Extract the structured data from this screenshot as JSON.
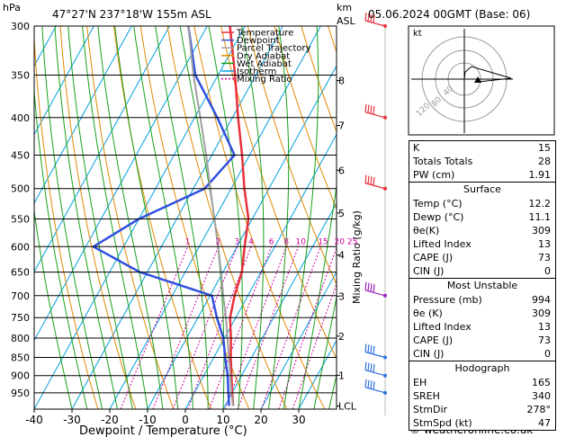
{
  "header": {
    "pressure_unit": "hPa",
    "location": "47°27'N  237°18'W  155m  ASL",
    "km_unit": "km",
    "asl_unit": "ASL",
    "datetime": "05.06.2024  00GMT  (Base: 06)"
  },
  "footer": {
    "xlabel": "Dewpoint / Temperature (°C)",
    "credit": "© weatheronline.co.uk"
  },
  "mixing_ratio_label": "Mixing Ratio (g/kg)",
  "legend": [
    {
      "label": "Temperature",
      "color": "#e8303a",
      "dash": ""
    },
    {
      "label": "Dewpoint",
      "color": "#3050e0",
      "dash": ""
    },
    {
      "label": "Parcel Trajectory",
      "color": "#a0a0a0",
      "dash": ""
    },
    {
      "label": "Dry Adiabat",
      "color": "#e08a00",
      "dash": ""
    },
    {
      "label": "Wet Adiabat",
      "color": "#18a018",
      "dash": ""
    },
    {
      "label": "Isotherm",
      "color": "#00a0e0",
      "dash": ""
    },
    {
      "label": "Mixing Ratio",
      "color": "#d000a0",
      "dash": "2,2"
    }
  ],
  "chart_data": {
    "type": "line",
    "title": "",
    "xlabel": "Dewpoint / Temperature (°C)",
    "ylabel": "hPa",
    "xlim": [
      -40,
      40
    ],
    "ylim": [
      1000,
      300
    ],
    "log_pressure": true,
    "x_ticks": [
      -40,
      -30,
      -20,
      -10,
      0,
      10,
      20,
      30
    ],
    "pressure_ticks": [
      300,
      350,
      400,
      450,
      500,
      550,
      600,
      650,
      700,
      750,
      800,
      850,
      900,
      950
    ],
    "km_ticks": [
      {
        "label": "8",
        "p": 356
      },
      {
        "label": "7",
        "p": 410
      },
      {
        "label": "6",
        "p": 472
      },
      {
        "label": "5",
        "p": 540
      },
      {
        "label": "4",
        "p": 616
      },
      {
        "label": "3",
        "p": 701
      },
      {
        "label": "2",
        "p": 795
      },
      {
        "label": "1",
        "p": 899
      },
      {
        "label": "LCL",
        "p": 990
      }
    ],
    "mixing_ratio_labels": [
      "1",
      "2",
      "3",
      "4",
      "6",
      "8",
      "10",
      "15",
      "20",
      "25"
    ],
    "mixing_ratio_values": [
      1,
      2,
      3,
      4,
      6,
      8,
      10,
      15,
      20,
      25
    ],
    "series": [
      {
        "name": "Temperature",
        "color": "#e8303a",
        "points": [
          [
            990,
            12.2
          ],
          [
            950,
            10.0
          ],
          [
            900,
            7.3
          ],
          [
            850,
            4.5
          ],
          [
            800,
            1.7
          ],
          [
            750,
            -1.5
          ],
          [
            700,
            -3.5
          ],
          [
            650,
            -5.0
          ],
          [
            600,
            -8.0
          ],
          [
            550,
            -11.0
          ],
          [
            500,
            -16.5
          ],
          [
            450,
            -22.0
          ],
          [
            400,
            -28.5
          ],
          [
            350,
            -35.5
          ],
          [
            300,
            -44.0
          ]
        ]
      },
      {
        "name": "Dewpoint",
        "color": "#3050e0",
        "points": [
          [
            990,
            11.1
          ],
          [
            950,
            9.0
          ],
          [
            900,
            6.3
          ],
          [
            850,
            3.0
          ],
          [
            800,
            -0.3
          ],
          [
            750,
            -5.0
          ],
          [
            700,
            -9.5
          ],
          [
            650,
            -32.0
          ],
          [
            600,
            -48.0
          ],
          [
            550,
            -40.0
          ],
          [
            500,
            -27.0
          ],
          [
            450,
            -24.0
          ],
          [
            400,
            -34.0
          ],
          [
            350,
            -46.0
          ],
          [
            300,
            -55.0
          ]
        ]
      },
      {
        "name": "Parcel Trajectory",
        "color": "#a0a0a0",
        "points": [
          [
            990,
            12.2
          ],
          [
            950,
            9.8
          ],
          [
            900,
            7.0
          ],
          [
            850,
            4.0
          ],
          [
            800,
            0.8
          ],
          [
            750,
            -2.6
          ],
          [
            700,
            -6.5
          ],
          [
            650,
            -10.5
          ],
          [
            600,
            -15.0
          ],
          [
            550,
            -20.0
          ],
          [
            500,
            -25.5
          ],
          [
            450,
            -31.5
          ],
          [
            400,
            -38.5
          ],
          [
            350,
            -46.5
          ],
          [
            300,
            -55.0
          ]
        ]
      }
    ],
    "wind_barbs_pressure": [
      300,
      400,
      500,
      700,
      850,
      900,
      950
    ]
  },
  "hodograph": {
    "label": "kt",
    "rings": [
      "120",
      "80",
      "40"
    ]
  },
  "indices": [
    {
      "label": "K",
      "value": "15"
    },
    {
      "label": "Totals Totals",
      "value": "28"
    },
    {
      "label": "PW (cm)",
      "value": "1.91"
    }
  ],
  "surface": {
    "title": "Surface",
    "rows": [
      {
        "label": "Temp (°C)",
        "value": "12.2"
      },
      {
        "label": "Dewp (°C)",
        "value": "11.1"
      },
      {
        "label": "θe(K)",
        "value": "309"
      },
      {
        "label": "Lifted Index",
        "value": "13"
      },
      {
        "label": "CAPE (J)",
        "value": "73"
      },
      {
        "label": "CIN (J)",
        "value": "0"
      }
    ]
  },
  "most_unstable": {
    "title": "Most Unstable",
    "rows": [
      {
        "label": "Pressure (mb)",
        "value": "994"
      },
      {
        "label": "θe (K)",
        "value": "309"
      },
      {
        "label": "Lifted Index",
        "value": "13"
      },
      {
        "label": "CAPE (J)",
        "value": "73"
      },
      {
        "label": "CIN (J)",
        "value": "0"
      }
    ]
  },
  "hodograph_table": {
    "title": "Hodograph",
    "rows": [
      {
        "label": "EH",
        "value": "165"
      },
      {
        "label": "SREH",
        "value": "340"
      },
      {
        "label": "StmDir",
        "value": "278°"
      },
      {
        "label": "StmSpd (kt)",
        "value": "47"
      }
    ]
  }
}
